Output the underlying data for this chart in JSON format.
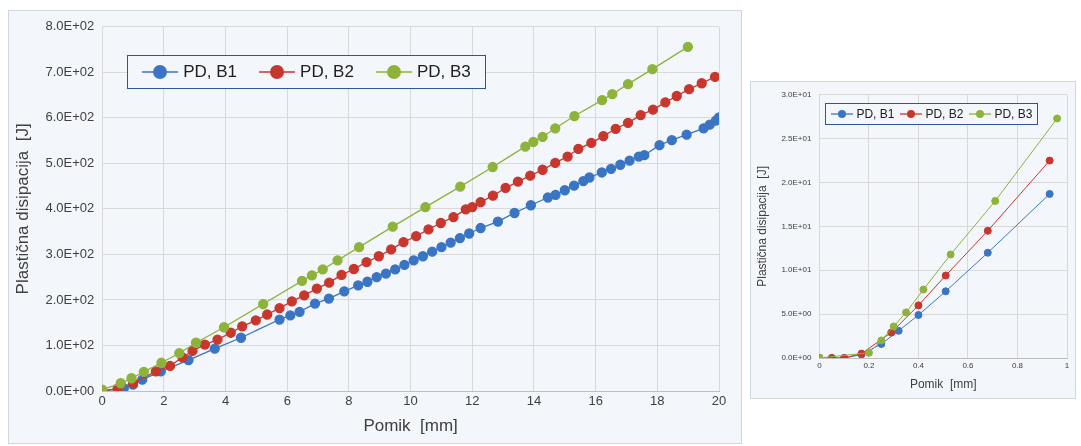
{
  "chart_data": [
    {
      "type": "line",
      "xlabel": "Pomik  [mm]",
      "ylabel": "Plastična disipacija  [J]",
      "xlim": [
        0,
        20
      ],
      "xticks": [
        0,
        2,
        4,
        6,
        8,
        10,
        12,
        14,
        16,
        18,
        20
      ],
      "ylim": [
        0,
        800
      ],
      "yticks": [
        {
          "value": 0,
          "label": "0.0E+00"
        },
        {
          "value": 100,
          "label": "1.0E+02"
        },
        {
          "value": 200,
          "label": "2.0E+02"
        },
        {
          "value": 300,
          "label": "3.0E+02"
        },
        {
          "value": 400,
          "label": "4.0E+02"
        },
        {
          "value": 500,
          "label": "5.0E+02"
        },
        {
          "value": 600,
          "label": "6.0E+02"
        },
        {
          "value": 700,
          "label": "7.0E+02"
        },
        {
          "value": 800,
          "label": "8.0E+02"
        }
      ],
      "grid": true,
      "legend": "top left",
      "marker": "circle",
      "line_style": "solid",
      "series": [
        {
          "name": "PD, B1",
          "color": "#3a75c4",
          "x": [
            0,
            0.7,
            1.0,
            1.3,
            1.9,
            2.8,
            3.65,
            4.5,
            5.75,
            6.1,
            6.4,
            6.9,
            7.35,
            7.85,
            8.3,
            8.6,
            8.9,
            9.2,
            9.5,
            9.8,
            10.1,
            10.4,
            10.7,
            11.0,
            11.3,
            11.6,
            11.9,
            12.27,
            12.83,
            13.37,
            13.9,
            14.45,
            14.7,
            15.0,
            15.3,
            15.6,
            15.8,
            16.2,
            16.5,
            16.8,
            17.1,
            17.4,
            17.58,
            18.07,
            18.47,
            18.95,
            19.5,
            19.7,
            19.9,
            20
          ],
          "values": [
            0,
            6,
            14,
            25,
            43,
            68,
            93,
            117,
            157,
            166,
            174,
            192,
            203,
            219,
            232,
            240,
            250,
            258,
            267,
            277,
            287,
            296,
            306,
            316,
            326,
            336,
            346,
            358,
            372,
            391,
            408,
            425,
            431,
            441,
            451,
            461,
            469,
            480,
            488,
            497,
            506,
            515,
            518,
            540,
            551,
            563,
            577,
            585,
            594,
            601
          ]
        },
        {
          "name": "PD, B2",
          "color": "#c8372d",
          "x": [
            0,
            0.5,
            1.0,
            1.74,
            2.2,
            2.6,
            2.93,
            3.33,
            3.74,
            4.17,
            4.54,
            4.98,
            5.35,
            5.75,
            6.15,
            6.55,
            6.96,
            7.36,
            7.76,
            8.16,
            8.57,
            8.97,
            9.37,
            9.77,
            10.18,
            10.58,
            10.98,
            11.39,
            11.79,
            12.0,
            12.27,
            12.67,
            13.08,
            13.48,
            13.88,
            14.28,
            14.69,
            15.09,
            15.44,
            15.86,
            16.25,
            16.65,
            17.05,
            17.46,
            17.86,
            18.26,
            18.63,
            19.03,
            19.44,
            19.87
          ],
          "values": [
            0,
            5,
            17,
            43,
            55,
            74,
            88,
            102,
            113,
            128,
            142,
            155,
            168,
            182,
            197,
            210,
            225,
            238,
            255,
            268,
            283,
            296,
            311,
            327,
            340,
            355,
            369,
            382,
            399,
            404,
            415,
            429,
            446,
            460,
            473,
            486,
            501,
            515,
            532,
            545,
            560,
            576,
            589,
            606,
            618,
            634,
            648,
            663,
            676,
            690
          ]
        },
        {
          "name": "PD, B3",
          "color": "#8db33a",
          "x": [
            0,
            0.6,
            0.95,
            1.35,
            1.92,
            2.5,
            3.04,
            3.95,
            5.22,
            6.48,
            6.8,
            7.15,
            7.63,
            8.33,
            9.42,
            10.48,
            11.61,
            12.66,
            13.72,
            13.98,
            14.28,
            14.69,
            15.31,
            16.21,
            16.54,
            17.05,
            17.84,
            18.99
          ],
          "values": [
            3,
            17,
            28,
            42,
            62,
            83,
            106,
            140,
            191,
            242,
            254,
            267,
            287,
            316,
            361,
            404,
            449,
            492,
            537,
            547,
            558,
            577,
            604,
            639,
            652,
            674,
            707,
            756
          ]
        }
      ]
    },
    {
      "type": "line",
      "xlabel": "Pomik  [mm]",
      "ylabel": "Plastična disipacija  [J]",
      "xlim": [
        0,
        1
      ],
      "xticks": [
        0,
        0.2,
        0.4,
        0.6,
        0.8,
        1
      ],
      "ylim": [
        0,
        30
      ],
      "yticks": [
        {
          "value": 0,
          "label": "0.0E+00"
        },
        {
          "value": 5,
          "label": "5.0E+00"
        },
        {
          "value": 10,
          "label": "1.0E+01"
        },
        {
          "value": 15,
          "label": "1.5E+01"
        },
        {
          "value": 20,
          "label": "2.0E+01"
        },
        {
          "value": 25,
          "label": "2.5E+01"
        },
        {
          "value": 30,
          "label": "3.0E+01"
        }
      ],
      "grid": true,
      "legend": "top left",
      "marker": "circle",
      "line_style": "solid",
      "series": [
        {
          "name": "PD, B1",
          "color": "#3a75c4",
          "x": [
            0,
            0.05,
            0.1,
            0.17,
            0.25,
            0.32,
            0.4,
            0.51,
            0.68,
            0.93
          ],
          "values": [
            0,
            0,
            0,
            0.4,
            1.6,
            3.1,
            4.9,
            7.6,
            12,
            18.7
          ]
        },
        {
          "name": "PD, B2",
          "color": "#c8372d",
          "x": [
            0,
            0.05,
            0.1,
            0.17,
            0.29,
            0.4,
            0.51,
            0.68,
            0.93
          ],
          "values": [
            0,
            0,
            0,
            0.5,
            2.9,
            6.0,
            9.4,
            14.5,
            22.5
          ]
        },
        {
          "name": "PD, B3",
          "color": "#8db33a",
          "x": [
            0,
            0.2,
            0.25,
            0.3,
            0.35,
            0.42,
            0.53,
            0.71,
            0.96
          ],
          "values": [
            0,
            0.6,
            2.0,
            3.6,
            5.2,
            7.8,
            11.8,
            17.9,
            27.3
          ]
        }
      ]
    }
  ]
}
